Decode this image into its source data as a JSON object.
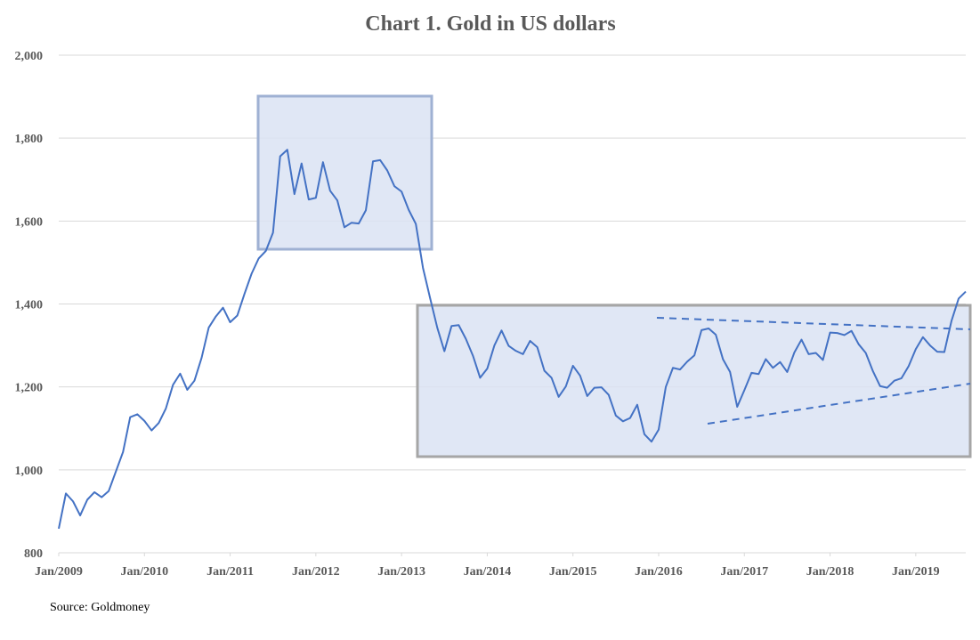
{
  "chart_data": {
    "type": "line",
    "title": "Chart 1. Gold in US dollars",
    "source": "Source: Goldmoney",
    "x": [
      "2009-01",
      "2009-02",
      "2009-03",
      "2009-04",
      "2009-05",
      "2009-06",
      "2009-07",
      "2009-08",
      "2009-09",
      "2009-10",
      "2009-11",
      "2009-12",
      "2010-01",
      "2010-02",
      "2010-03",
      "2010-04",
      "2010-05",
      "2010-06",
      "2010-07",
      "2010-08",
      "2010-09",
      "2010-10",
      "2010-11",
      "2010-12",
      "2011-01",
      "2011-02",
      "2011-03",
      "2011-04",
      "2011-05",
      "2011-06",
      "2011-07",
      "2011-08",
      "2011-09",
      "2011-10",
      "2011-11",
      "2011-12",
      "2012-01",
      "2012-02",
      "2012-03",
      "2012-04",
      "2012-05",
      "2012-06",
      "2012-07",
      "2012-08",
      "2012-09",
      "2012-10",
      "2012-11",
      "2012-12",
      "2013-01",
      "2013-02",
      "2013-03",
      "2013-04",
      "2013-05",
      "2013-06",
      "2013-07",
      "2013-08",
      "2013-09",
      "2013-10",
      "2013-11",
      "2013-12",
      "2014-01",
      "2014-02",
      "2014-03",
      "2014-04",
      "2014-05",
      "2014-06",
      "2014-07",
      "2014-08",
      "2014-09",
      "2014-10",
      "2014-11",
      "2014-12",
      "2015-01",
      "2015-02",
      "2015-03",
      "2015-04",
      "2015-05",
      "2015-06",
      "2015-07",
      "2015-08",
      "2015-09",
      "2015-10",
      "2015-11",
      "2015-12",
      "2016-01",
      "2016-02",
      "2016-03",
      "2016-04",
      "2016-05",
      "2016-06",
      "2016-07",
      "2016-08",
      "2016-09",
      "2016-10",
      "2016-11",
      "2016-12",
      "2017-01",
      "2017-02",
      "2017-03",
      "2017-04",
      "2017-05",
      "2017-06",
      "2017-07",
      "2017-08",
      "2017-09",
      "2017-10",
      "2017-11",
      "2017-12",
      "2018-01",
      "2018-02",
      "2018-03",
      "2018-04",
      "2018-05",
      "2018-06",
      "2018-07",
      "2018-08",
      "2018-09",
      "2018-10",
      "2018-11",
      "2018-12",
      "2019-01",
      "2019-02",
      "2019-03",
      "2019-04",
      "2019-05",
      "2019-06",
      "2019-07",
      "2019-08"
    ],
    "series": [
      {
        "name": "Gold",
        "color": "#4472c4",
        "values": [
          858,
          943,
          924,
          890,
          928,
          946,
          934,
          949,
          996,
          1043,
          1127,
          1134,
          1118,
          1095,
          1113,
          1148,
          1205,
          1232,
          1193,
          1215,
          1270,
          1343,
          1370,
          1391,
          1356,
          1372,
          1424,
          1473,
          1510,
          1528,
          1572,
          1756,
          1772,
          1665,
          1739,
          1652,
          1656,
          1742,
          1673,
          1650,
          1585,
          1596,
          1594,
          1626,
          1744,
          1747,
          1722,
          1684,
          1671,
          1627,
          1593,
          1487,
          1414,
          1343,
          1286,
          1347,
          1349,
          1316,
          1275,
          1222,
          1244,
          1300,
          1336,
          1299,
          1287,
          1279,
          1311,
          1296,
          1239,
          1222,
          1176,
          1201,
          1251,
          1227,
          1178,
          1198,
          1199,
          1181,
          1131,
          1117,
          1125,
          1157,
          1086,
          1068,
          1097,
          1200,
          1246,
          1242,
          1261,
          1276,
          1337,
          1341,
          1326,
          1267,
          1236,
          1152,
          1192,
          1234,
          1231,
          1267,
          1246,
          1260,
          1236,
          1283,
          1314,
          1279,
          1282,
          1265,
          1331,
          1330,
          1325,
          1335,
          1303,
          1282,
          1238,
          1202,
          1198,
          1215,
          1221,
          1250,
          1291,
          1320,
          1300,
          1285,
          1284,
          1359,
          1413,
          1430
        ]
      }
    ],
    "xlim": [
      "2009-01",
      "2019-08"
    ],
    "xticks": [
      {
        "value": "2009-01",
        "label": "Jan/2009"
      },
      {
        "value": "2010-01",
        "label": "Jan/2010"
      },
      {
        "value": "2011-01",
        "label": "Jan/2011"
      },
      {
        "value": "2012-01",
        "label": "Jan/2012"
      },
      {
        "value": "2013-01",
        "label": "Jan/2013"
      },
      {
        "value": "2014-01",
        "label": "Jan/2014"
      },
      {
        "value": "2015-01",
        "label": "Jan/2015"
      },
      {
        "value": "2016-01",
        "label": "Jan/2016"
      },
      {
        "value": "2017-01",
        "label": "Jan/2017"
      },
      {
        "value": "2018-01",
        "label": "Jan/2018"
      },
      {
        "value": "2019-01",
        "label": "Jan/2019"
      }
    ],
    "ylim": [
      800,
      2000
    ],
    "yticks": [
      800,
      {
        "value": 1000,
        "label": "1,000"
      },
      {
        "value": 1200,
        "label": "1,200"
      },
      {
        "value": 1400,
        "label": "1,400"
      },
      {
        "value": 1600,
        "label": "1,600"
      },
      {
        "value": 1800,
        "label": "1,800"
      },
      {
        "value": 2000,
        "label": "2,000"
      }
    ],
    "grid": true
  }
}
